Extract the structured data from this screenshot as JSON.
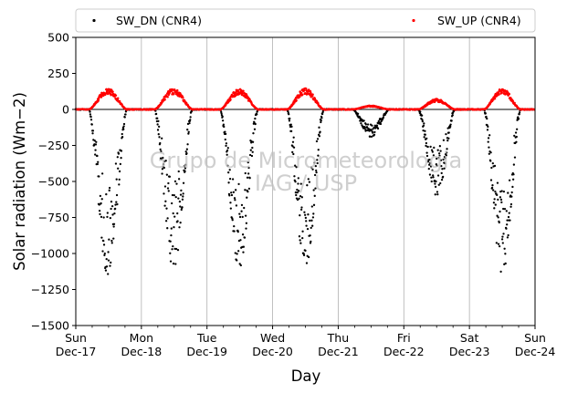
{
  "chart_data": {
    "type": "scatter",
    "xlabel": "Day",
    "ylabel": "Solar radiation (Wm−2)",
    "ylim": [
      -1500,
      500
    ],
    "yticks": [
      -1500,
      -1250,
      -1000,
      -750,
      -500,
      -250,
      0,
      250,
      500
    ],
    "ytick_labels": [
      "−1500",
      "−1250",
      "−1000",
      "−750",
      "−500",
      "−250",
      "0",
      "250",
      "500"
    ],
    "xlim": [
      0,
      7
    ],
    "xticks": [
      {
        "day": "Sun",
        "date": "Dec-17"
      },
      {
        "day": "Mon",
        "date": "Dec-18"
      },
      {
        "day": "Tue",
        "date": "Dec-19"
      },
      {
        "day": "Wed",
        "date": "Dec-20"
      },
      {
        "day": "Thu",
        "date": "Dec-21"
      },
      {
        "day": "Fri",
        "date": "Dec-22"
      },
      {
        "day": "Sat",
        "date": "Dec-23"
      },
      {
        "day": "Sun",
        "date": "Dec-24"
      }
    ],
    "grid": "vertical",
    "legend_position": "top",
    "watermark": [
      "Grupo de Micrometeorologia",
      "IAG / USP"
    ],
    "series": [
      {
        "name": "SW_DN (CNR4)",
        "color": "#000000",
        "days": [
          {
            "date": "Dec-17",
            "sunrise": 0.2,
            "sunset": 0.78,
            "peak": -1150
          },
          {
            "date": "Dec-18",
            "sunrise": 1.2,
            "sunset": 1.78,
            "peak": -1100
          },
          {
            "date": "Dec-19",
            "sunrise": 2.2,
            "sunset": 2.78,
            "peak": -1100
          },
          {
            "date": "Dec-20",
            "sunrise": 3.22,
            "sunset": 3.78,
            "peak": -1100
          },
          {
            "date": "Dec-21",
            "sunrise": 4.22,
            "sunset": 4.78,
            "peak": -190
          },
          {
            "date": "Dec-22",
            "sunrise": 5.22,
            "sunset": 5.78,
            "peak": -600
          },
          {
            "date": "Dec-23",
            "sunrise": 6.22,
            "sunset": 6.78,
            "peak": -1150
          }
        ]
      },
      {
        "name": "SW_UP (CNR4)",
        "color": "#ff0000",
        "days": [
          {
            "date": "Dec-17",
            "sunrise": 0.2,
            "sunset": 0.78,
            "peak": 140
          },
          {
            "date": "Dec-18",
            "sunrise": 1.2,
            "sunset": 1.78,
            "peak": 140
          },
          {
            "date": "Dec-19",
            "sunrise": 2.2,
            "sunset": 2.78,
            "peak": 135
          },
          {
            "date": "Dec-20",
            "sunrise": 3.22,
            "sunset": 3.78,
            "peak": 140
          },
          {
            "date": "Dec-21",
            "sunrise": 4.22,
            "sunset": 4.78,
            "peak": 25
          },
          {
            "date": "Dec-22",
            "sunrise": 5.22,
            "sunset": 5.78,
            "peak": 70
          },
          {
            "date": "Dec-23",
            "sunrise": 6.22,
            "sunset": 6.78,
            "peak": 140
          }
        ]
      }
    ]
  }
}
